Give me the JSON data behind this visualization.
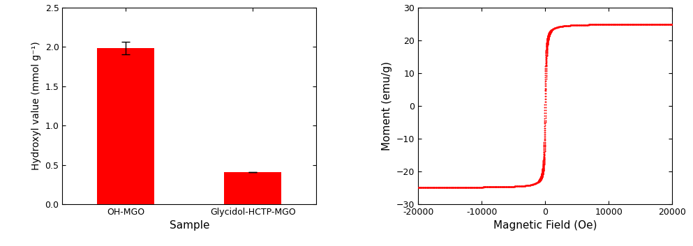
{
  "bar_categories": [
    "OH-MGO",
    "Glycidol-HCTP-MGO"
  ],
  "bar_values": [
    1.98,
    0.41
  ],
  "bar_errors": [
    0.08,
    0.0
  ],
  "bar_color": "#ff0000",
  "bar_xlabel": "Sample",
  "bar_ylabel": "Hydroxyl value (mmol g⁻¹)",
  "bar_ylim": [
    0,
    2.5
  ],
  "bar_yticks": [
    0.0,
    0.5,
    1.0,
    1.5,
    2.0,
    2.5
  ],
  "vsm_Ms": 25.0,
  "vsm_Hc": 80,
  "vsm_xlim": [
    -20000,
    20000
  ],
  "vsm_ylim": [
    -30,
    30
  ],
  "vsm_xlabel": "Magnetic Field (Oe)",
  "vsm_ylabel": "Moment (emu/g)",
  "vsm_xticks": [
    -20000,
    -10000,
    0,
    10000,
    20000
  ],
  "vsm_yticks": [
    -30,
    -20,
    -10,
    0,
    10,
    20,
    30
  ],
  "vsm_color": "#ff0000",
  "vsm_dot_size": 2,
  "background_color": "#ffffff"
}
